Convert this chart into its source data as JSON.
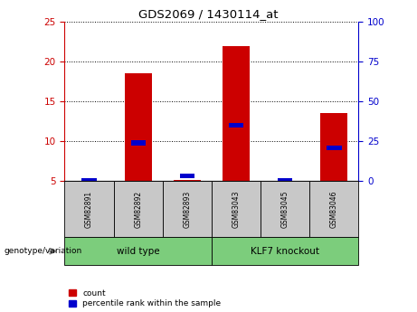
{
  "title": "GDS2069 / 1430114_at",
  "categories": [
    "GSM82891",
    "GSM82892",
    "GSM82893",
    "GSM83043",
    "GSM83045",
    "GSM83046"
  ],
  "count_values": [
    5.0,
    18.5,
    5.15,
    22.0,
    5.0,
    13.5
  ],
  "percentile_values": [
    0.0,
    24.0,
    3.0,
    35.0,
    0.0,
    21.0
  ],
  "ylim_left": [
    5,
    25
  ],
  "ylim_right": [
    0,
    100
  ],
  "yticks_left": [
    5,
    10,
    15,
    20,
    25
  ],
  "yticks_right": [
    0,
    25,
    50,
    75,
    100
  ],
  "group_label": "genotype/variation",
  "bar_color_count": "#cc0000",
  "bar_color_percentile": "#0000cc",
  "legend_count": "count",
  "legend_percentile": "percentile rank within the sample",
  "background_color": "#ffffff",
  "label_area_color": "#c8c8c8",
  "group_info": [
    {
      "label": "wild type",
      "start": 0,
      "end": 3,
      "color": "#7ccd7c"
    },
    {
      "label": "KLF7 knockout",
      "start": 3,
      "end": 6,
      "color": "#7ccd7c"
    }
  ]
}
